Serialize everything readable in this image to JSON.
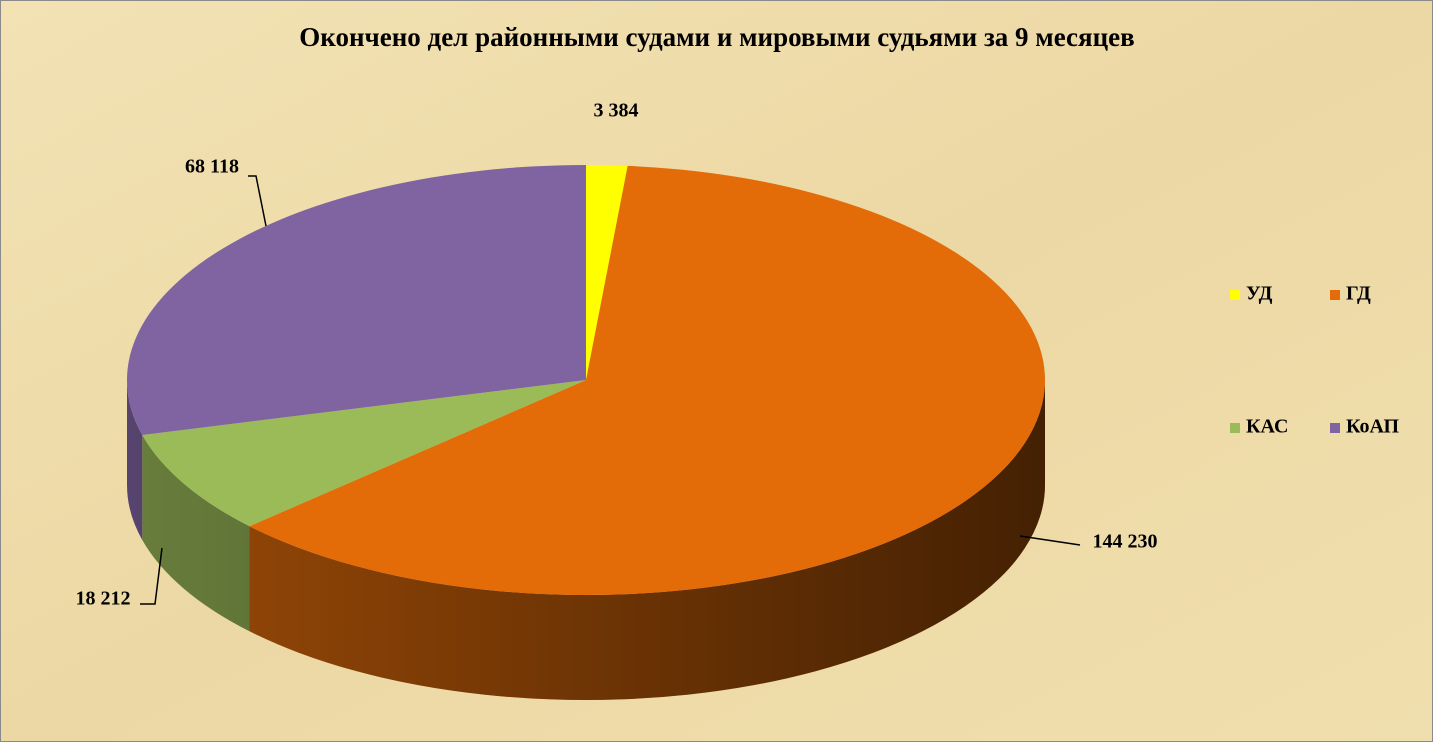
{
  "chart_data": {
    "type": "pie3d",
    "title": "Окончено дел районными судами и мировыми судьями за 9 месяцев",
    "categories": [
      "УД",
      "ГД",
      "КАС",
      "КоАП"
    ],
    "values": [
      3384,
      144230,
      18212,
      68118
    ],
    "value_labels": [
      "3 384",
      "144 230",
      "18 212",
      "68 118"
    ],
    "colors": [
      "#ffff00",
      "#e36c09",
      "#9bbb59",
      "#8064a2"
    ],
    "legend": "right"
  }
}
